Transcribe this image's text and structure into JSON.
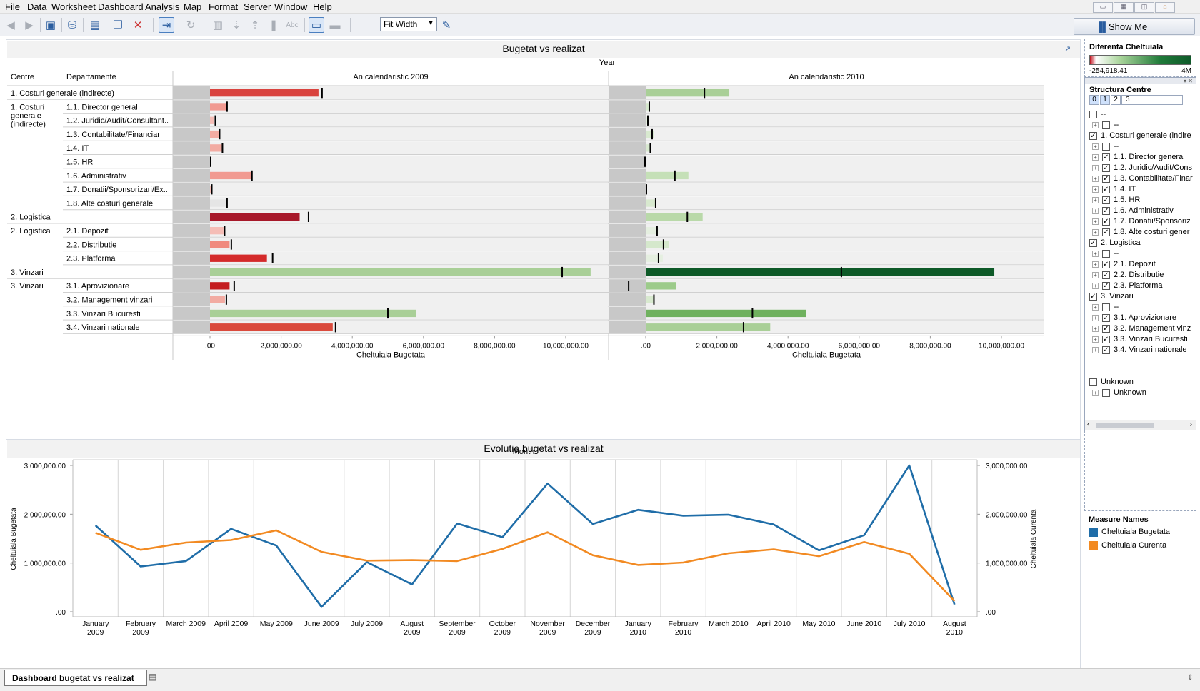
{
  "menu": [
    "File",
    "Data",
    "Worksheet",
    "Dashboard",
    "Analysis",
    "Map",
    "Format",
    "Server",
    "Window",
    "Help"
  ],
  "toolbar": {
    "fit_label": "Fit Width",
    "show_me_label": "Show Me"
  },
  "sheet_tab": {
    "label": "Dashboard bugetat vs realizat"
  },
  "top_chart": {
    "title": "Bugetat vs realizat",
    "year_header": "Year",
    "col_headers": [
      "Centre",
      "Departamente"
    ],
    "years": [
      "An calendaristic 2009",
      "An calendaristic 2010"
    ],
    "axis_title": "Cheltuiala Bugetata",
    "ticks": [
      ".00",
      "2,000,000.00",
      "4,000,000.00",
      "6,000,000.00",
      "8,000,000.00",
      "10,000,000.00"
    ],
    "groups": [
      {
        "label": "1. Costuri generale (indirecte)"
      },
      {
        "label": "1. Costuri generale (indirecte)"
      },
      {
        "label": "2. Logistica"
      },
      {
        "label": "2. Logistica"
      },
      {
        "label": "3. Vinzari"
      },
      {
        "label": "3. Vinzari"
      }
    ]
  },
  "chart_data": [
    {
      "type": "bar",
      "title": "Bugetat vs realizat",
      "xlabel": "Cheltuiala Bugetata",
      "xlim": [
        -1000000,
        11000000
      ],
      "rows": [
        {
          "centre": "1. Costuri generale (indirecte)",
          "dept": "",
          "v2009": 3050000,
          "r2009": 3150000,
          "c2009": "#d9433e",
          "v2010": 2350000,
          "r2010": 1650000,
          "c2010": "#a9cf97"
        },
        {
          "centre": "1. Costuri generale (indirecte)",
          "dept": "1.1. Director general",
          "v2009": 450000,
          "r2009": 480000,
          "c2009": "#f19a91",
          "v2010": 90000,
          "r2010": 100000,
          "c2010": "#d5e8cc"
        },
        {
          "centre": "1. Costuri generale (indirecte)",
          "dept": "1.2. Juridic/Audit/Consultant..",
          "v2009": 120000,
          "r2009": 150000,
          "c2009": "#f5bdb6",
          "v2010": 80000,
          "r2010": 60000,
          "c2010": "#e5efe0"
        },
        {
          "centre": "1. Costuri generale (indirecte)",
          "dept": "1.3. Contabilitate/Financiar",
          "v2009": 250000,
          "r2009": 270000,
          "c2009": "#f2aba2",
          "v2010": 220000,
          "r2010": 180000,
          "c2010": "#d8e9cf"
        },
        {
          "centre": "1. Costuri generale (indirecte)",
          "dept": "1.4. IT",
          "v2009": 330000,
          "r2009": 350000,
          "c2009": "#f2aba2",
          "v2010": 150000,
          "r2010": 130000,
          "c2010": "#d8e9cf"
        },
        {
          "centre": "1. Costuri generale (indirecte)",
          "dept": "1.5. HR",
          "v2009": 20000,
          "r2009": 20000,
          "c2009": "#f5bdb6",
          "v2010": 10000,
          "r2010": -20000,
          "c2010": "#e5efe0"
        },
        {
          "centre": "1. Costuri generale (indirecte)",
          "dept": "1.6. Administrativ",
          "v2009": 1150000,
          "r2009": 1180000,
          "c2009": "#f19a91",
          "v2010": 1200000,
          "r2010": 820000,
          "c2010": "#c5e0b7"
        },
        {
          "centre": "1. Costuri generale (indirecte)",
          "dept": "1.7. Donatii/Sponsorizari/Ex..",
          "v2009": 40000,
          "r2009": 50000,
          "c2009": "#f5bdb6",
          "v2010": 30000,
          "r2010": 20000,
          "c2010": "#e5efe0"
        },
        {
          "centre": "1. Costuri generale (indirecte)",
          "dept": "1.8. Alte costuri generale",
          "v2009": 460000,
          "r2009": 480000,
          "c2009": "#e5e5e5",
          "v2010": 300000,
          "r2010": 280000,
          "c2010": "#d8e9cf"
        },
        {
          "centre": "2. Logistica",
          "dept": "",
          "v2009": 2520000,
          "r2009": 2770000,
          "c2009": "#a7192a",
          "v2010": 1600000,
          "r2010": 1170000,
          "c2010": "#b9d9a9"
        },
        {
          "centre": "2. Logistica",
          "dept": "2.1. Depozit",
          "v2009": 380000,
          "r2009": 410000,
          "c2009": "#f5bdb6",
          "v2010": 350000,
          "r2010": 320000,
          "c2010": "#e5efe0"
        },
        {
          "centre": "2. Logistica",
          "dept": "2.2. Distributie",
          "v2009": 550000,
          "r2009": 600000,
          "c2009": "#f08a7e",
          "v2010": 650000,
          "r2010": 500000,
          "c2010": "#d5e8cc"
        },
        {
          "centre": "2. Logistica",
          "dept": "2.3. Platforma",
          "v2009": 1600000,
          "r2009": 1760000,
          "c2009": "#d42a2a",
          "v2010": 480000,
          "r2010": 360000,
          "c2010": "#e5efe0"
        },
        {
          "centre": "3. Vinzari",
          "dept": "",
          "v2009": 10700000,
          "r2009": 9900000,
          "c2009": "#a9cf97",
          "v2010": 9800000,
          "r2010": 5500000,
          "c2010": "#0e5a28"
        },
        {
          "centre": "3. Vinzari",
          "dept": "3.1. Aprovizionare",
          "v2009": 550000,
          "r2009": 680000,
          "c2009": "#c41c1f",
          "v2010": 850000,
          "r2010": -480000,
          "c2010": "#9ccb8a"
        },
        {
          "centre": "3. Vinzari",
          "dept": "3.2. Management vinzari",
          "v2009": 420000,
          "r2009": 460000,
          "c2009": "#f2aba2",
          "v2010": 250000,
          "r2010": 230000,
          "c2010": "#d8e9cf"
        },
        {
          "centre": "3. Vinzari",
          "dept": "3.3. Vinzari Bucuresti",
          "v2009": 5800000,
          "r2009": 5000000,
          "c2009": "#a9cf97",
          "v2010": 4500000,
          "r2010": 3000000,
          "c2010": "#6fb15e"
        },
        {
          "centre": "3. Vinzari",
          "dept": "3.4. Vinzari nationale",
          "v2009": 3450000,
          "r2009": 3530000,
          "c2009": "#da4a3c",
          "v2010": 3500000,
          "r2010": 2750000,
          "c2010": "#a9cf97"
        }
      ]
    },
    {
      "type": "line",
      "title": "Evolutie bugetat vs realizat",
      "xlabel": "Month",
      "ylabel": "Cheltuiala Bugetata",
      "ylabel2": "Cheltuiala Curenta",
      "ylim": [
        0,
        3000000
      ],
      "yticks": [
        "3,000,000.00",
        "2,000,000.00",
        "1,000,000.00",
        ".00"
      ],
      "categories": [
        [
          "January",
          "2009"
        ],
        [
          "February",
          "2009"
        ],
        [
          "March 2009"
        ],
        [
          "April 2009"
        ],
        [
          "May 2009"
        ],
        [
          "June 2009"
        ],
        [
          "July 2009"
        ],
        [
          "August",
          "2009"
        ],
        [
          "September",
          "2009"
        ],
        [
          "October",
          "2009"
        ],
        [
          "November",
          "2009"
        ],
        [
          "December",
          "2009"
        ],
        [
          "January",
          "2010"
        ],
        [
          "February",
          "2010"
        ],
        [
          "March 2010"
        ],
        [
          "April 2010"
        ],
        [
          "May 2010"
        ],
        [
          "June 2010"
        ],
        [
          "July 2010"
        ],
        [
          "August",
          "2010"
        ]
      ],
      "series": [
        {
          "name": "Cheltuiala Bugetata",
          "color": "#1f6da8",
          "values": [
            1770000,
            930000,
            1040000,
            1700000,
            1360000,
            100000,
            1020000,
            560000,
            1810000,
            1530000,
            2630000,
            1800000,
            2090000,
            1970000,
            1990000,
            1790000,
            1260000,
            1570000,
            3000000,
            150000
          ]
        },
        {
          "name": "Cheltuiala Curenta",
          "color": "#f28a22",
          "values": [
            1620000,
            1270000,
            1420000,
            1470000,
            1670000,
            1230000,
            1050000,
            1060000,
            1040000,
            1290000,
            1630000,
            1160000,
            960000,
            1010000,
            1200000,
            1280000,
            1140000,
            1430000,
            1190000,
            220000
          ]
        }
      ]
    }
  ],
  "color_legend": {
    "title": "Diferenta Cheltuiala",
    "min": "-254,918.41",
    "max": "4M"
  },
  "filter": {
    "title": "Structura Centre",
    "levels": [
      "0",
      "1",
      "2",
      "3"
    ],
    "items": [
      {
        "label": "--",
        "indent": 0,
        "checked": false,
        "expander": false
      },
      {
        "label": "--",
        "indent": 1,
        "checked": false,
        "expander": true
      },
      {
        "label": "1. Costuri generale (indire",
        "indent": 0,
        "checked": true,
        "expander": false
      },
      {
        "label": "--",
        "indent": 1,
        "checked": false,
        "expander": true
      },
      {
        "label": "1.1. Director general",
        "indent": 1,
        "checked": true,
        "expander": true
      },
      {
        "label": "1.2. Juridic/Audit/Cons",
        "indent": 1,
        "checked": true,
        "expander": true
      },
      {
        "label": "1.3. Contabilitate/Finar",
        "indent": 1,
        "checked": true,
        "expander": true
      },
      {
        "label": "1.4. IT",
        "indent": 1,
        "checked": true,
        "expander": true
      },
      {
        "label": "1.5. HR",
        "indent": 1,
        "checked": true,
        "expander": true
      },
      {
        "label": "1.6. Administrativ",
        "indent": 1,
        "checked": true,
        "expander": true
      },
      {
        "label": "1.7. Donatii/Sponsoriz",
        "indent": 1,
        "checked": true,
        "expander": true
      },
      {
        "label": "1.8. Alte costuri gener",
        "indent": 1,
        "checked": true,
        "expander": true
      },
      {
        "label": "2. Logistica",
        "indent": 0,
        "checked": true,
        "expander": false
      },
      {
        "label": "--",
        "indent": 1,
        "checked": false,
        "expander": true
      },
      {
        "label": "2.1. Depozit",
        "indent": 1,
        "checked": true,
        "expander": true
      },
      {
        "label": "2.2. Distributie",
        "indent": 1,
        "checked": true,
        "expander": true
      },
      {
        "label": "2.3. Platforma",
        "indent": 1,
        "checked": true,
        "expander": true
      },
      {
        "label": "3. Vinzari",
        "indent": 0,
        "checked": true,
        "expander": false
      },
      {
        "label": "--",
        "indent": 1,
        "checked": false,
        "expander": true
      },
      {
        "label": "3.1. Aprovizionare",
        "indent": 1,
        "checked": true,
        "expander": true
      },
      {
        "label": "3.2. Management vinz",
        "indent": 1,
        "checked": true,
        "expander": true
      },
      {
        "label": "3.3. Vinzari Bucuresti",
        "indent": 1,
        "checked": true,
        "expander": true
      },
      {
        "label": "3.4. Vinzari nationale",
        "indent": 1,
        "checked": true,
        "expander": true
      },
      {
        "label": "",
        "indent": 0,
        "checked": false,
        "expander": false,
        "spacer": true
      },
      {
        "label": "Unknown",
        "indent": 0,
        "checked": false,
        "expander": false
      },
      {
        "label": "Unknown",
        "indent": 1,
        "checked": false,
        "expander": true
      }
    ]
  },
  "measure_legend": {
    "title": "Measure Names",
    "items": [
      {
        "label": "Cheltuiala Bugetata",
        "color": "#1f6da8"
      },
      {
        "label": "Cheltuiala Curenta",
        "color": "#f28a22"
      }
    ]
  }
}
